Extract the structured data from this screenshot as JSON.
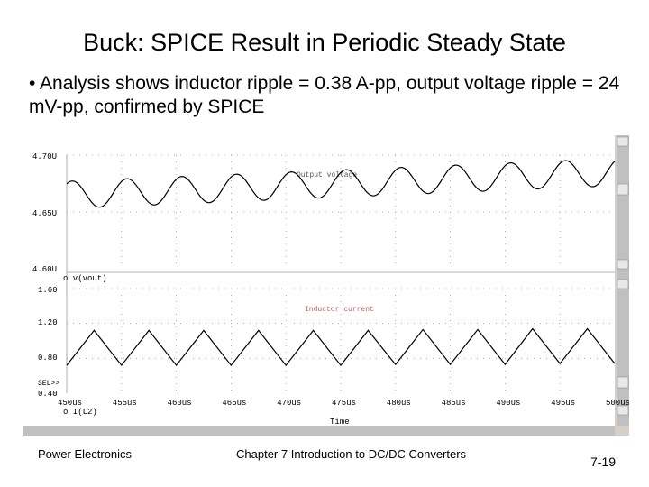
{
  "slide": {
    "title": "Buck: SPICE Result in Periodic Steady State",
    "bullet": "• Analysis shows inductor ripple = 0.38 A-pp, output voltage ripple = 24 mV-pp, confirmed by SPICE",
    "footer_left": "Power Electronics",
    "footer_center": "Chapter 7 Introduction to DC/DC Converters",
    "footer_right": "7-19"
  },
  "probe": {
    "top_plot": {
      "y_ticks": [
        "4.70U",
        "4.65U",
        "4.60U"
      ],
      "trace_label": "Output voltage",
      "legend": "o v(vout)"
    },
    "bottom_plot": {
      "y_ticks": [
        "1.60",
        "1.20",
        "0.80",
        "0.40"
      ],
      "trace_label": "Inductor current",
      "legend": "o I(L2)",
      "sel_marker": "SEL>>"
    },
    "x_ticks": [
      "450us",
      "455us",
      "460us",
      "465us",
      "470us",
      "475us",
      "480us",
      "485us",
      "490us",
      "495us",
      "500us"
    ],
    "x_label": "Time",
    "colors": {
      "frame": "#d4d0c8",
      "trace": "#000000",
      "label": "#c06060"
    }
  },
  "chart_data": [
    {
      "type": "line",
      "x": [
        450,
        452.5,
        455,
        457.5,
        460,
        462.5,
        465,
        467.5,
        470,
        472.5,
        475,
        477.5,
        480,
        482.5,
        485,
        487.5,
        490,
        492.5,
        495,
        497.5,
        500
      ],
      "series": [
        {
          "name": "v(vout)",
          "values": [
            4.672,
            4.674,
            4.673,
            4.676,
            4.675,
            4.678,
            4.677,
            4.68,
            4.679,
            4.683,
            4.682,
            4.686,
            4.685,
            4.689,
            4.689,
            4.693,
            4.693,
            4.697,
            4.698,
            4.703,
            4.705
          ]
        }
      ],
      "xlabel": "Time",
      "ylabel": "",
      "xlim": [
        450,
        500
      ],
      "ylim": [
        4.6,
        4.7
      ],
      "note_oscillation": "sinusoidal ripple ~24 mV-pp, period 5us",
      "legend": "bottom-left",
      "grid": "dotted"
    },
    {
      "type": "line",
      "x": [
        450,
        452.5,
        455,
        457.5,
        460,
        462.5,
        465,
        467.5,
        470,
        472.5,
        475,
        477.5,
        480,
        482.5,
        485,
        487.5,
        490,
        492.5,
        495,
        497.5,
        500
      ],
      "series": [
        {
          "name": "I(L2)",
          "values": [
            0.72,
            1.12,
            0.72,
            1.12,
            0.72,
            1.12,
            0.72,
            1.12,
            0.72,
            1.12,
            0.72,
            1.12,
            0.73,
            1.13,
            0.73,
            1.13,
            0.73,
            1.14,
            0.74,
            1.14,
            0.74
          ]
        }
      ],
      "xlabel": "Time",
      "ylabel": "",
      "xlim": [
        450,
        500
      ],
      "ylim": [
        0.4,
        1.6
      ],
      "legend": "bottom-left",
      "grid": "dotted"
    }
  ]
}
